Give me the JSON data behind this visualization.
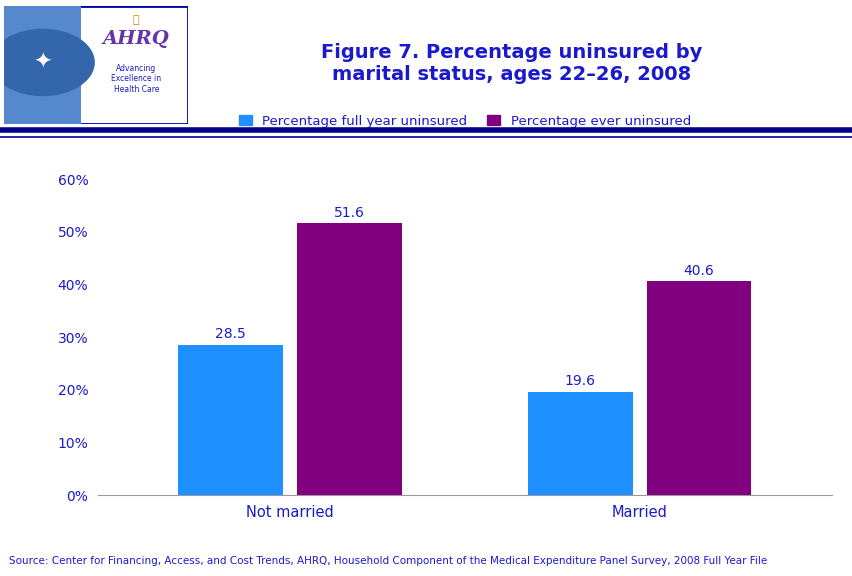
{
  "title_line1": "Figure 7. Percentage uninsured by",
  "title_line2": "marital status, ages 22–26, 2008",
  "title_color": "#1a1acc",
  "title_fontsize": 14,
  "categories": [
    "Not married",
    "Married"
  ],
  "series": [
    {
      "label": "Percentage full year uninsured",
      "values": [
        28.5,
        19.6
      ],
      "color": "#1e90ff"
    },
    {
      "label": "Percentage ever uninsured",
      "values": [
        51.6,
        40.6
      ],
      "color": "#800080"
    }
  ],
  "ylim": [
    0,
    65
  ],
  "yticks": [
    0,
    10,
    20,
    30,
    40,
    50,
    60
  ],
  "ytick_labels": [
    "0%",
    "10%",
    "20%",
    "30%",
    "40%",
    "50%",
    "60%"
  ],
  "bar_width": 0.3,
  "data_label_fontsize": 10,
  "data_label_color": "#1a1acc",
  "legend_fontsize": 9.5,
  "tick_label_color": "#1a1acc",
  "tick_label_fontsize": 10,
  "category_label_fontsize": 10.5,
  "source_text": "Source: Center for Financing, Access, and Cost Trends, AHRQ, Household Component of the Medical Expenditure Panel Survey, 2008 Full Year File",
  "source_fontsize": 7.5,
  "source_color": "#1a1acc",
  "background_color": "#ffffff",
  "header_line_color": "#00008b",
  "figure_bg": "#ffffff",
  "header_bg": "#ffffff",
  "logo_border_color": "#0000aa",
  "logo_left_bg": "#5588cc",
  "ahrq_color": "#6633aa",
  "ahrq_text_color": "#1a1acc"
}
